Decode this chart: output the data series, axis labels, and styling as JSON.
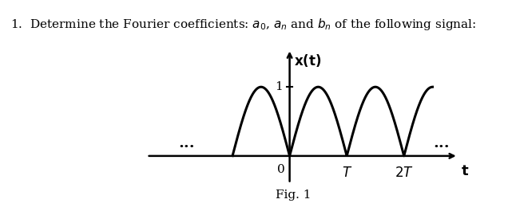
{
  "title_text": "1.  Determine the Fourier coefficients: $a_0$, $a_n$ and $b_n$ of the following signal:",
  "ylabel_text": "$\\mathbf{x(t)}$",
  "xlabel_text": "$\\mathbf{t}$",
  "fig_caption": "Fig. 1",
  "tick_label_1": "1",
  "tick_label_0": "0",
  "tick_label_T": "$T$",
  "tick_label_2T": "$2T$",
  "dots_text": "...",
  "background_color": "#ffffff",
  "line_color": "#000000",
  "text_color": "#000000",
  "signal_amplitude": 1.0,
  "num_arches": 2.5,
  "xlim": [
    -2.5,
    3.0
  ],
  "ylim": [
    -0.5,
    1.6
  ]
}
